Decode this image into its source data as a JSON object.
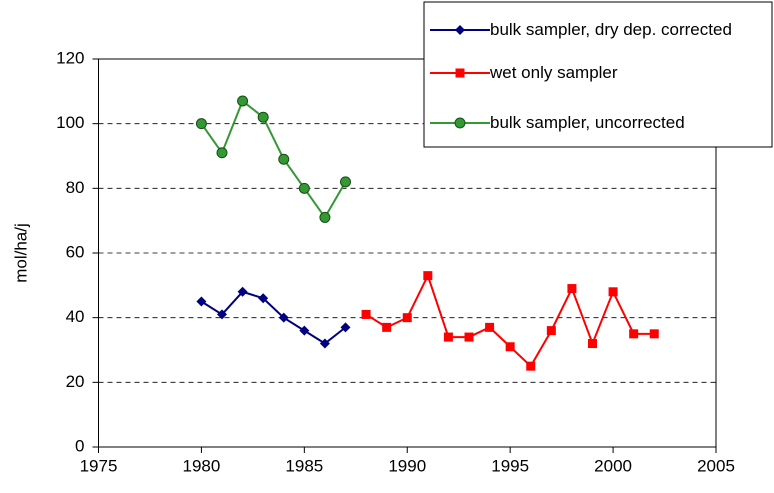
{
  "chart_data": {
    "type": "line",
    "y_label": "mol/ha/j",
    "xlim": [
      1975,
      2005
    ],
    "xticks": [
      1975,
      1980,
      1985,
      1990,
      1995,
      2000,
      2005
    ],
    "ylim": [
      0,
      120
    ],
    "yticks": [
      0,
      20,
      40,
      60,
      80,
      100,
      120
    ],
    "grid": true,
    "legend": "top-right",
    "series": [
      {
        "name": "bulk sampler, dry dep. corrected",
        "color": "#000080",
        "marker": "diamond",
        "x": [
          1980,
          1981,
          1982,
          1983,
          1984,
          1985,
          1986,
          1987
        ],
        "values": [
          45,
          41,
          48,
          46,
          40,
          36,
          32,
          37
        ]
      },
      {
        "name": "wet only sampler",
        "color": "#ff0000",
        "marker": "square",
        "x": [
          1988,
          1989,
          1990,
          1991,
          1992,
          1993,
          1994,
          1995,
          1996,
          1997,
          1998,
          1999,
          2000,
          2001,
          2002
        ],
        "values": [
          41,
          37,
          40,
          53,
          34,
          34,
          37,
          31,
          25,
          36,
          49,
          32,
          48,
          35,
          35
        ]
      },
      {
        "name": "bulk sampler, uncorrected",
        "color": "#339933",
        "marker": "circle",
        "x": [
          1980,
          1981,
          1982,
          1983,
          1984,
          1985,
          1986,
          1987
        ],
        "values": [
          100,
          91,
          107,
          102,
          89,
          80,
          71,
          82
        ]
      }
    ]
  }
}
